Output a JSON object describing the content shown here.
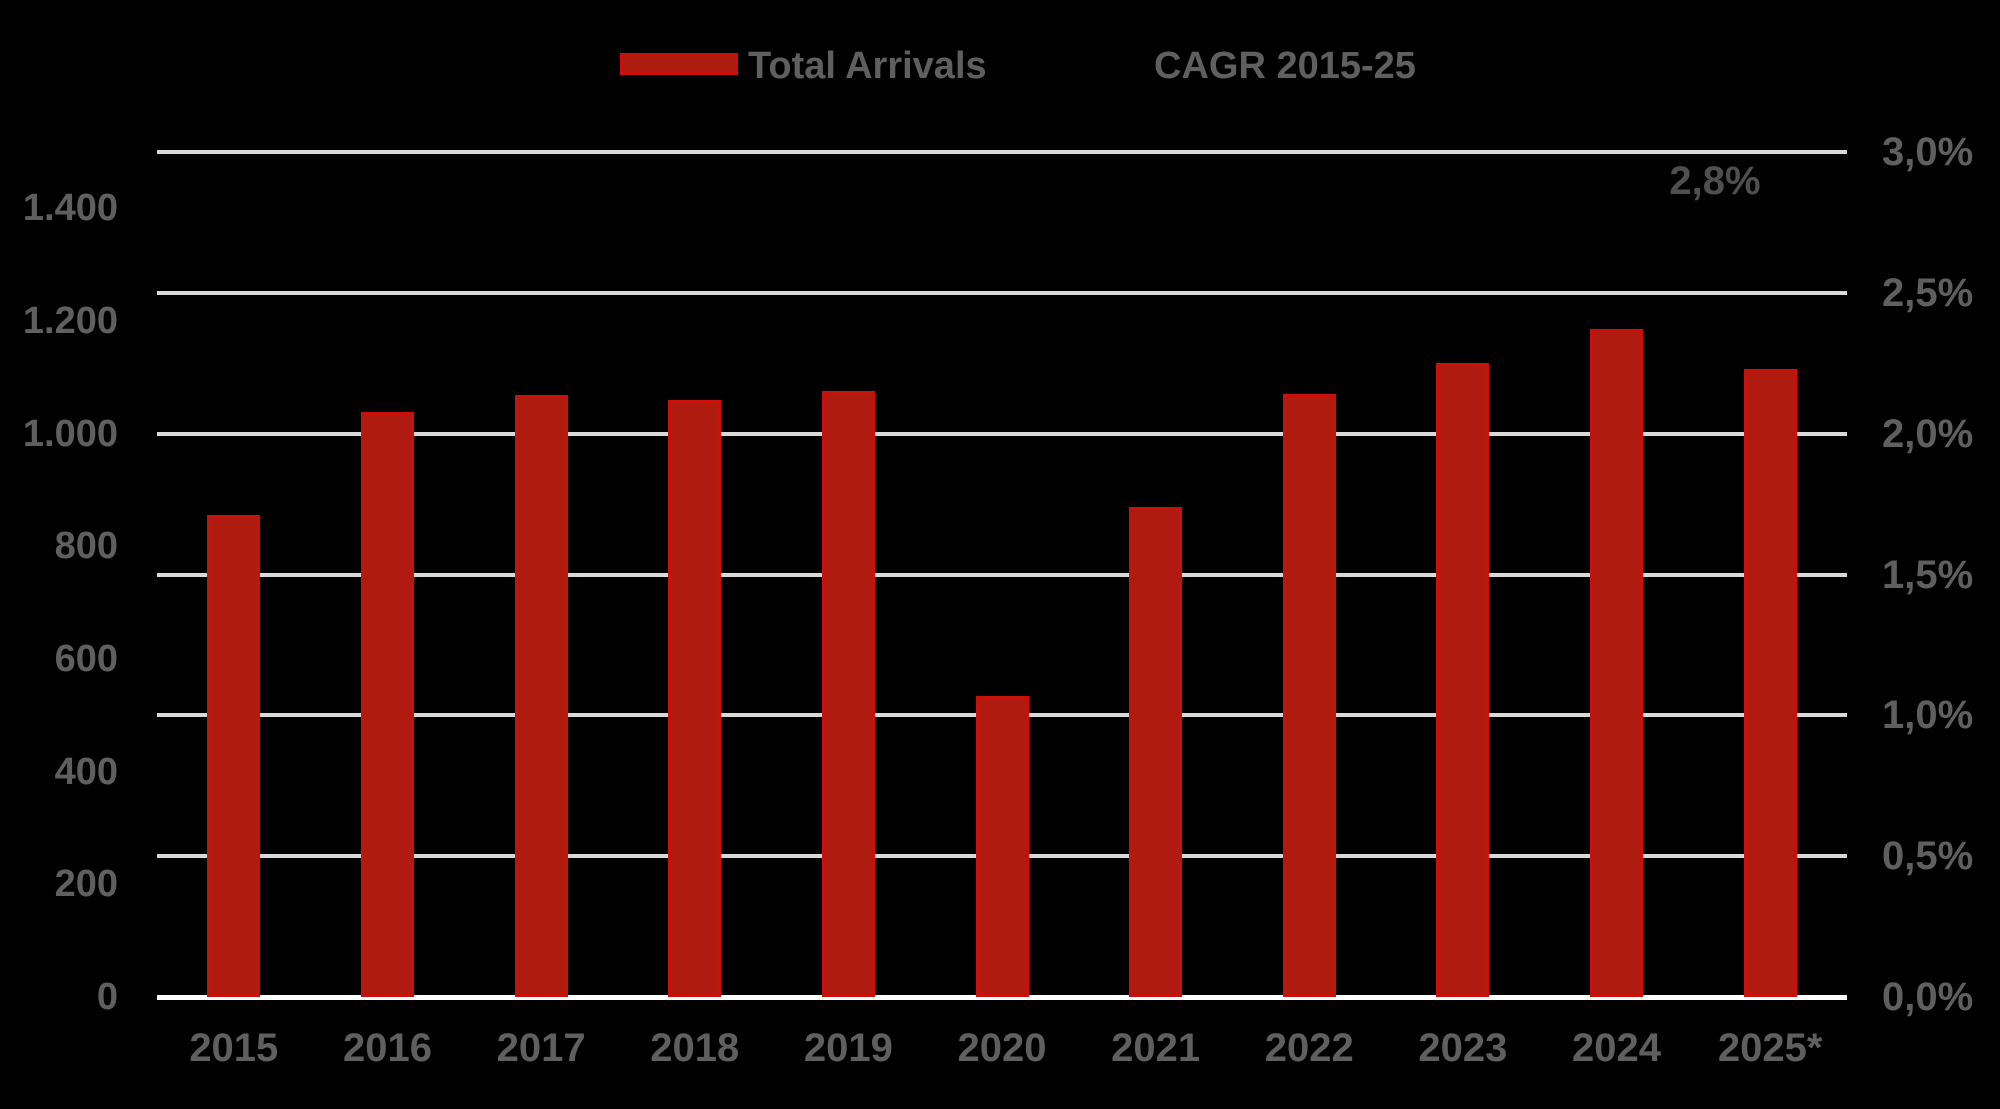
{
  "chart_data": {
    "type": "bar",
    "title": "",
    "categories": [
      "2015",
      "2016",
      "2017",
      "2018",
      "2019",
      "2020",
      "2021",
      "2022",
      "2023",
      "2024",
      "2025*"
    ],
    "series": [
      {
        "name": "Total Arrivals",
        "axis": "left",
        "values": [
          855,
          1038,
          1068,
          1060,
          1075,
          535,
          870,
          1070,
          1125,
          1185,
          1115
        ]
      },
      {
        "name": "CAGR 2015-25",
        "axis": "right",
        "visible_point_labels": [
          {
            "category": "2025*",
            "value": 2.8,
            "label": "2,8%"
          }
        ]
      }
    ],
    "left_axis": {
      "tick_labels": [
        "0",
        "200",
        "400",
        "600",
        "800",
        "1.000",
        "1.200",
        "1.400"
      ],
      "tick_values": [
        0,
        200,
        400,
        600,
        800,
        1000,
        1200,
        1400
      ],
      "range": [
        0,
        1500
      ]
    },
    "right_axis": {
      "tick_labels": [
        "0,0%",
        "0,5%",
        "1,0%",
        "1,5%",
        "2,0%",
        "2,5%",
        "3,0%"
      ],
      "tick_values": [
        0,
        0.5,
        1.0,
        1.5,
        2.0,
        2.5,
        3.0
      ],
      "range": [
        0,
        3.0
      ]
    },
    "grid": "horizontal",
    "legend_position": "top"
  },
  "legend": {
    "total_arrivals_label": "Total Arrivals",
    "cagr_label": "CAGR 2015-25"
  },
  "annotation": {
    "cagr_value_label": "2,8%"
  },
  "colors": {
    "background": "#000000",
    "bar_fill": "#b01b10",
    "bar_border": "#ca100b",
    "gridline": "#d9d9d9",
    "baseline": "#ffffff",
    "axis_text": "#5f5f5f",
    "annotation_text": "#4f4f4f"
  }
}
